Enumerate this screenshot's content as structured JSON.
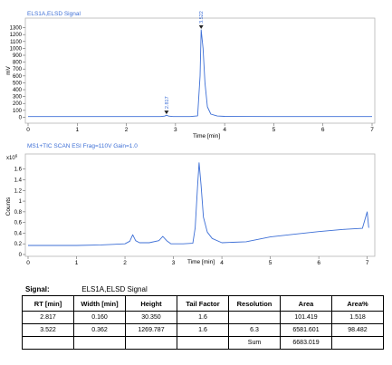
{
  "chart_data": [
    {
      "type": "line",
      "title": "ELS1A,ELSD Signal",
      "xlabel": "Time [min]",
      "ylabel": "mV",
      "xlim": [
        0,
        7
      ],
      "ylim": [
        -60,
        1400
      ],
      "xticks": [
        "0",
        "1",
        "2",
        "3",
        "4",
        "5",
        "6",
        "7"
      ],
      "yticks": [
        "0",
        "100",
        "200",
        "300",
        "400",
        "500",
        "600",
        "700",
        "800",
        "900",
        "1000",
        "1100",
        "1200",
        "1300"
      ],
      "color": "#3d6fd6",
      "grid": false,
      "peaks": [
        {
          "x": 2.817,
          "y": 30.35,
          "label": "2.817"
        },
        {
          "x": 3.522,
          "y": 1269.787,
          "label": "3.522"
        }
      ],
      "series": [
        {
          "x": [
            0.0,
            0.5,
            1.0,
            1.5,
            2.0,
            2.5,
            2.7,
            2.78,
            2.817,
            2.86,
            2.95,
            3.3,
            3.45,
            3.5,
            3.522,
            3.56,
            3.6,
            3.65,
            3.72,
            3.85,
            4.0,
            5.0,
            6.0,
            7.0
          ],
          "y": [
            10,
            10,
            10,
            10,
            10,
            10,
            10,
            16,
            30,
            16,
            10,
            10,
            20,
            600,
            1270,
            1000,
            500,
            150,
            45,
            18,
            12,
            10,
            10,
            10
          ]
        }
      ]
    },
    {
      "type": "line",
      "title": "MS1+TIC SCAN ESI Frag=110V Gain=1.0",
      "xlabel": "Time [min]",
      "ylabel": "Counts",
      "y_multiplier": "x10 6",
      "xlim": [
        0,
        7.1
      ],
      "ylim": [
        0,
        1.85
      ],
      "xticks": [
        "0",
        "1",
        "2",
        "3",
        "4",
        "5",
        "6",
        "7"
      ],
      "yticks": [
        "0",
        "0.2",
        "0.4",
        "0.6",
        "0.8",
        "1",
        "1.2",
        "1.4",
        "1.6"
      ],
      "color": "#3d6fd6",
      "grid": false,
      "series": [
        {
          "x": [
            0.0,
            0.5,
            1.0,
            1.5,
            2.0,
            2.1,
            2.16,
            2.22,
            2.3,
            2.5,
            2.7,
            2.78,
            2.86,
            2.95,
            3.2,
            3.4,
            3.45,
            3.5,
            3.53,
            3.57,
            3.62,
            3.7,
            3.8,
            4.0,
            4.5,
            5.0,
            5.5,
            6.0,
            6.5,
            6.9,
            7.0,
            7.03
          ],
          "y": [
            0.17,
            0.17,
            0.17,
            0.18,
            0.2,
            0.25,
            0.37,
            0.26,
            0.22,
            0.22,
            0.26,
            0.34,
            0.26,
            0.2,
            0.2,
            0.21,
            0.5,
            1.3,
            1.72,
            1.3,
            0.7,
            0.42,
            0.3,
            0.22,
            0.24,
            0.33,
            0.38,
            0.43,
            0.47,
            0.49,
            0.8,
            0.5
          ]
        }
      ]
    }
  ],
  "signal": {
    "label": "Signal:",
    "value": "ELS1A,ELSD Signal"
  },
  "table": {
    "headers": [
      "RT [min]",
      "Width [min]",
      "Height",
      "Tail Factor",
      "Resolution",
      "Area",
      "Area%"
    ],
    "rows": [
      [
        "2.817",
        "0.160",
        "30.350",
        "1.6",
        "",
        "101.419",
        "1.518"
      ],
      [
        "3.522",
        "0.362",
        "1269.787",
        "1.6",
        "6.3",
        "6581.601",
        "98.482"
      ],
      [
        "",
        "",
        "",
        "",
        "Sum",
        "6683.019",
        ""
      ]
    ]
  }
}
